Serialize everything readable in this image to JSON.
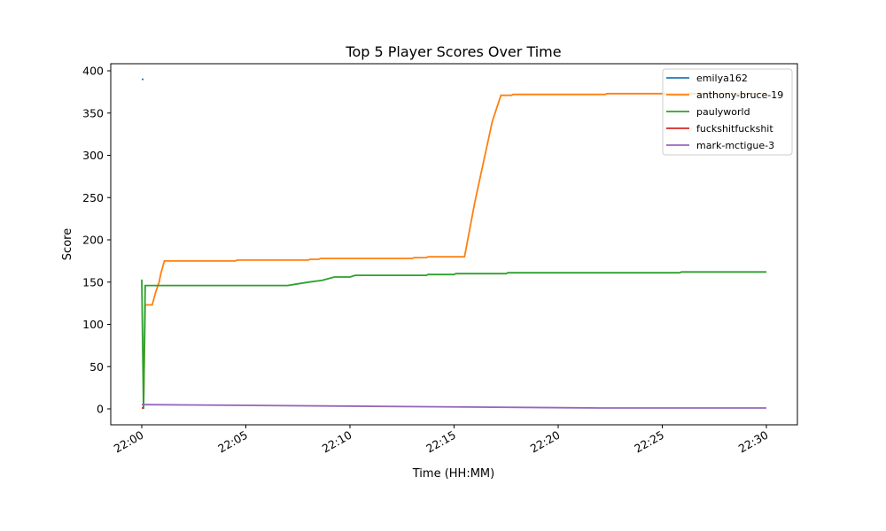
{
  "chart_data": {
    "type": "line",
    "title": "Top 5 Player Scores Over Time",
    "xlabel": "Time (HH:MM)",
    "ylabel": "Score",
    "xlim": [
      "21:58:30",
      "22:31:30"
    ],
    "ylim": [
      -18,
      410
    ],
    "xticks": [
      "22:00",
      "22:05",
      "22:10",
      "22:15",
      "22:20",
      "22:25",
      "22:30"
    ],
    "yticks": [
      0,
      50,
      100,
      150,
      200,
      250,
      300,
      350,
      400
    ],
    "grid": false,
    "legend_position": "top-right",
    "series": [
      {
        "name": "emilya162",
        "color": "#1f77b4",
        "points": [
          [
            "22:00:00",
            390
          ],
          [
            "22:00:05",
            390
          ]
        ]
      },
      {
        "name": "anthony-bruce-19",
        "color": "#ff7f0e",
        "points": [
          [
            "22:00:05",
            2
          ],
          [
            "22:00:10",
            123
          ],
          [
            "22:00:30",
            123
          ],
          [
            "22:00:40",
            138
          ],
          [
            "22:00:50",
            150
          ],
          [
            "22:00:55",
            160
          ],
          [
            "22:01:05",
            175
          ],
          [
            "22:04:30",
            175
          ],
          [
            "22:04:35",
            176
          ],
          [
            "22:08:00",
            176
          ],
          [
            "22:08:05",
            177
          ],
          [
            "22:08:30",
            177
          ],
          [
            "22:08:35",
            178
          ],
          [
            "22:13:00",
            178
          ],
          [
            "22:13:05",
            179
          ],
          [
            "22:13:40",
            179
          ],
          [
            "22:13:45",
            180
          ],
          [
            "22:15:30",
            180
          ],
          [
            "22:16:00",
            245
          ],
          [
            "22:16:50",
            340
          ],
          [
            "22:17:15",
            371
          ],
          [
            "22:17:45",
            371
          ],
          [
            "22:17:50",
            372
          ],
          [
            "22:22:15",
            372
          ],
          [
            "22:22:20",
            373
          ],
          [
            "22:30:00",
            373
          ]
        ]
      },
      {
        "name": "paulyworld",
        "color": "#2ca02c",
        "points": [
          [
            "22:00:00",
            153
          ],
          [
            "22:00:05",
            0
          ],
          [
            "22:00:10",
            146
          ],
          [
            "22:07:00",
            146
          ],
          [
            "22:07:30",
            148
          ],
          [
            "22:08:00",
            150
          ],
          [
            "22:08:40",
            152
          ],
          [
            "22:09:15",
            156
          ],
          [
            "22:10:00",
            156
          ],
          [
            "22:10:15",
            158
          ],
          [
            "22:13:40",
            158
          ],
          [
            "22:13:45",
            159
          ],
          [
            "22:15:00",
            159
          ],
          [
            "22:15:05",
            160
          ],
          [
            "22:17:30",
            160
          ],
          [
            "22:17:35",
            161
          ],
          [
            "22:25:50",
            161
          ],
          [
            "22:25:55",
            162
          ],
          [
            "22:30:00",
            162
          ]
        ]
      },
      {
        "name": "fuckshitfuckshit",
        "color": "#d62728",
        "points": [
          [
            "22:00:00",
            1
          ],
          [
            "22:00:05",
            1
          ]
        ]
      },
      {
        "name": "mark-mctigue-3",
        "color": "#9467bd",
        "points": [
          [
            "22:00:00",
            5
          ],
          [
            "22:22:00",
            1
          ],
          [
            "22:30:00",
            1
          ]
        ]
      }
    ]
  }
}
